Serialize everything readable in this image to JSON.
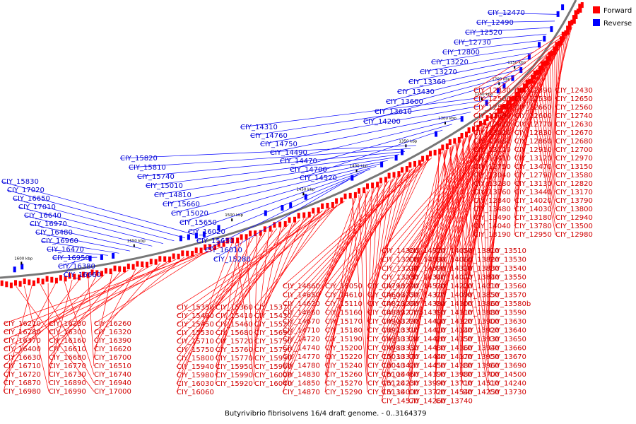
{
  "caption": "Butyrivibrio fibrisolvens 16/4 draft genome. - 0..3164379",
  "legend": {
    "forward": {
      "label": "Forward",
      "color": "#ff0000"
    },
    "reverse": {
      "label": "Reverse",
      "color": "#0000ff"
    }
  },
  "ticks": [
    "1150 kbp",
    "1200 kbp",
    "1250 kbp",
    "1300 kbp",
    "1350 kbp",
    "1400 kbp",
    "1450 kbp",
    "1500 kbp",
    "1550 kbp",
    "1600 kbp"
  ],
  "reverse_genes": [
    "CIY_12470",
    "CIY_12490",
    "CIY_12520",
    "CIY_12730",
    "CIY_12800",
    "CIY_13220",
    "CIY_13270",
    "CIY_13360",
    "CIY_13430",
    "CIY_13600",
    "CIY_13610",
    "CIY_14200",
    "CIY_14310",
    "CIY_14760",
    "CIY_14750",
    "CIY_14490",
    "CIY_14470",
    "CIY_14700",
    "CIY_14520",
    "CIY_15820",
    "CIY_15810",
    "CIY_15740",
    "CIY_15010",
    "CIY_14810",
    "CIY_15660",
    "CIY_15020",
    "CIY_15650",
    "CIY_16020",
    "CIY_15630",
    "CIY_16010",
    "CIY_15280",
    "CIY_15830",
    "CIY_17020",
    "CIY_16650",
    "CIY_17010",
    "CIY_16640",
    "CIY_16970",
    "CIY_16480",
    "CIY_16960",
    "CIY_16470",
    "CIY_16950",
    "CIY_16380",
    "CIY_16660"
  ],
  "forward_genes_right": [
    "CIY_12330",
    "CIY_12390",
    "CIY_12430",
    "CIY_12500",
    "CIY_12530",
    "CIY_12650",
    "CIY_12550",
    "CIY_12660",
    "CIY_12560",
    "CIY_12690",
    "CIY_12600",
    "CIY_12740",
    "CIY_12610",
    "CIY_12770",
    "CIY_12630",
    "CIY_13020",
    "CIY_12830",
    "CIY_12670",
    "CIY_13060",
    "CIY_12860",
    "CIY_12680",
    "CIY_13110",
    "CIY_12910",
    "CIY_12700",
    "CIY_13410",
    "CIY_13120",
    "CIY_12970",
    "CIY_12750",
    "CIY_13470",
    "CIY_13150",
    "CIY_13040",
    "CIY_12790",
    "CIY_13580",
    "CIY_13280",
    "CIY_13130",
    "CIY_12820",
    "CIY_13760",
    "CIY_13440",
    "CIY_13170",
    "CIY_12840",
    "CIY_14020",
    "CIY_13790",
    "CIY_13480",
    "CIY_14030",
    "CIY_13800",
    "CIY_13490",
    "CIY_13180",
    "CIY_12940",
    "CIY_14040",
    "CIY_13780",
    "CIY_13500",
    "CIY_13190",
    "CIY_12950",
    "CIY_12980"
  ],
  "forward_genes_mid": [
    "CIY_14300",
    "CIY_14320",
    "CIY_14050",
    "CIY_13810",
    "CIY_13510",
    "CIY_13200",
    "CIY_14580",
    "CIY_14060",
    "CIY_13820",
    "CIY_13530",
    "CIY_13210",
    "CIY_14590",
    "CIY_14330",
    "CIY_13830",
    "CIY_13540",
    "CIY_13230",
    "CIY_14340",
    "CIY_14070",
    "CIY_13840",
    "CIY_13550",
    "CIY_13240",
    "CIY_14530",
    "CIY_14220",
    "CIY_14010",
    "CIY_13560",
    "CIY_13250",
    "CIY_14370",
    "CIY_14090",
    "CIY_13850",
    "CIY_13570",
    "CIY_13260",
    "CIY_14380",
    "CIY_14100",
    "CIY_13860",
    "CIY_13580b",
    "CIY_13270b",
    "CIY_14390",
    "CIY_14110",
    "CIY_13880",
    "CIY_13590",
    "CIY_13290",
    "CIY_14400",
    "CIY_14120",
    "CIY_13900",
    "CIY_13630",
    "CIY_13310",
    "CIY_14410",
    "CIY_14140",
    "CIY_13920",
    "CIY_13640",
    "CIY_13320",
    "CIY_14420",
    "CIY_14150",
    "CIY_13930",
    "CIY_13650",
    "CIY_13330",
    "CIY_14430",
    "CIY_14160",
    "CIY_13940",
    "CIY_13660",
    "CIY_13370",
    "CIY_14440",
    "CIY_14170",
    "CIY_13950",
    "CIY_13670",
    "CIY_13420",
    "CIY_14450",
    "CIY_14180",
    "CIY_13960",
    "CIY_13690",
    "CIY_14460",
    "CIY_14190",
    "CIY_13980",
    "CIY_13700",
    "CIY_14500",
    "CIY_14230",
    "CIY_13990",
    "CIY_13710",
    "CIY_14510",
    "CIY_14240",
    "CIY_14000",
    "CIY_13720",
    "CIY_14540",
    "CIY_14250",
    "CIY_13730",
    "CIY_14570",
    "CIY_14260",
    "CIY_13740"
  ],
  "forward_genes_center": [
    "CIY_14860",
    "CIY_15050",
    "CIY_14790",
    "CIY_14650",
    "CIY_14610",
    "CIY_14600",
    "CIY_14620",
    "CIY_15110",
    "CIY_14820",
    "CIY_14660",
    "CIY_15160",
    "CIY_14880",
    "CIY_14670",
    "CIY_15170",
    "CIY_14900",
    "CIY_14710",
    "CIY_15180",
    "CIY_14920",
    "CIY_14720",
    "CIY_15190",
    "CIY_14930",
    "CIY_14740",
    "CIY_15200",
    "CIY_14980",
    "CIY_14770",
    "CIY_15220",
    "CIY_15030",
    "CIY_14780",
    "CIY_15240",
    "CIY_15040",
    "CIY_14830",
    "CIY_15260",
    "CIY_15100",
    "CIY_14850",
    "CIY_15270",
    "CIY_15120",
    "CIY_14870",
    "CIY_15290",
    "CIY_15130"
  ],
  "forward_genes_left_center": [
    "CIY_15350",
    "CIY_15360",
    "CIY_15370",
    "CIY_15400",
    "CIY_15410",
    "CIY_15430",
    "CIY_15450",
    "CIY_15460",
    "CIY_15520",
    "CIY_15530",
    "CIY_15680",
    "CIY_15690",
    "CIY_15710",
    "CIY_15720",
    "CIY_15730",
    "CIY_15750",
    "CIY_15760",
    "CIY_15790",
    "CIY_15800",
    "CIY_15770",
    "CIY_15930",
    "CIY_15940",
    "CIY_15950",
    "CIY_15960",
    "CIY_15980",
    "CIY_15990",
    "CIY_16000",
    "CIY_16030",
    "CIY_15920",
    "CIY_16040",
    "CIY_16060"
  ],
  "forward_genes_left": [
    "CIY_16210",
    "CIY_16230",
    "CIY_16260",
    "CIY_16280",
    "CIY_16300",
    "CIY_16320",
    "CIY_16370",
    "CIY_16160",
    "CIY_16390",
    "CIY_16400",
    "CIY_16610",
    "CIY_16620",
    "CIY_16630",
    "CIY_16680",
    "CIY_16700",
    "CIY_16710",
    "CIY_16770",
    "CIY_16510",
    "CIY_16720",
    "CIY_16730",
    "CIY_16740",
    "CIY_16870",
    "CIY_16890",
    "CIY_16940",
    "CIY_16980",
    "CIY_16990",
    "CIY_17000"
  ]
}
